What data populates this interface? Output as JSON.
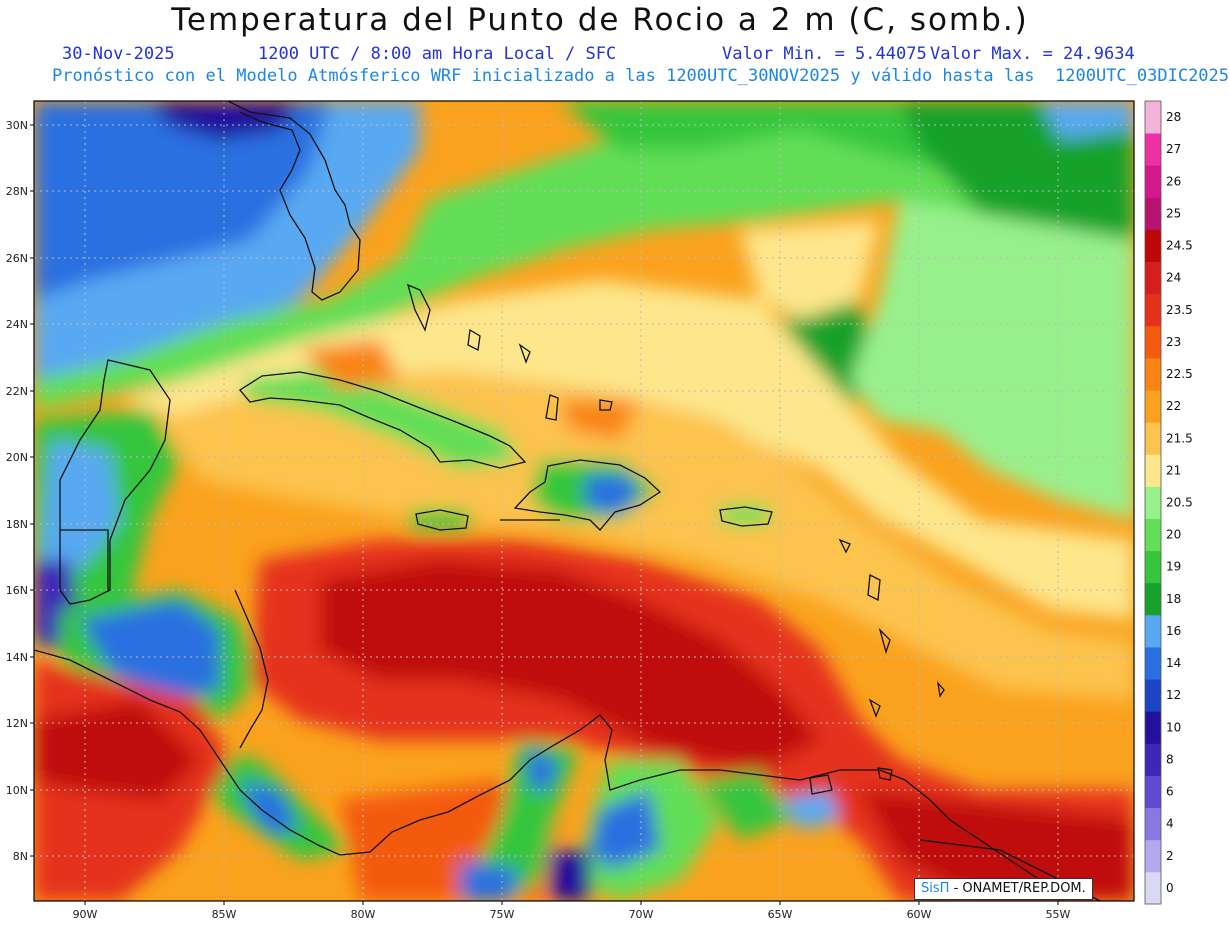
{
  "header": {
    "title": "Temperatura del Punto de Rocio a 2 m (C, somb.)",
    "date": "30-Nov-2025",
    "time_label": "1200 UTC / 8:00 am Hora Local / SFC",
    "min_label": "Valor Min. = 5.44075",
    "max_label": "Valor Max. = 24.9634",
    "description": "Pronóstico con el Modelo Atmósferico WRF inicializado a las 1200UTC_30NOV2025 y válido hasta las  1200UTC_03DIC2025"
  },
  "map": {
    "lat_labels": [
      "30N",
      "28N",
      "26N",
      "24N",
      "22N",
      "20N",
      "18N",
      "16N",
      "14N",
      "12N",
      "10N",
      "8N"
    ],
    "lon_labels": [
      "90W",
      "85W",
      "80W",
      "75W",
      "70W",
      "65W",
      "60W",
      "55W"
    ],
    "grid": true
  },
  "colorbar": {
    "labels": [
      "0",
      "2",
      "4",
      "6",
      "8",
      "10",
      "12",
      "14",
      "16",
      "18",
      "19",
      "20",
      "20.5",
      "21",
      "21.5",
      "22",
      "22.5",
      "23",
      "23.5",
      "24",
      "24.5",
      "25",
      "26",
      "27",
      "28"
    ],
    "colors": [
      "#d9d9f5",
      "#b4a8ef",
      "#8a78e2",
      "#5f4ad2",
      "#3d26b8",
      "#23109c",
      "#1d44c7",
      "#2a6fe0",
      "#59a9f2",
      "#17a22b",
      "#36c63d",
      "#62de57",
      "#98f08d",
      "#fde68b",
      "#fcc34e",
      "#faa21d",
      "#f98413",
      "#f45a10",
      "#e5301a",
      "#d81d1d",
      "#bf0707",
      "#b81370",
      "#d6188e",
      "#ef30a4",
      "#f4b3d8"
    ]
  },
  "credit": {
    "sis": "SisΠ",
    "text": "- ONAMET/REP.DOM."
  }
}
